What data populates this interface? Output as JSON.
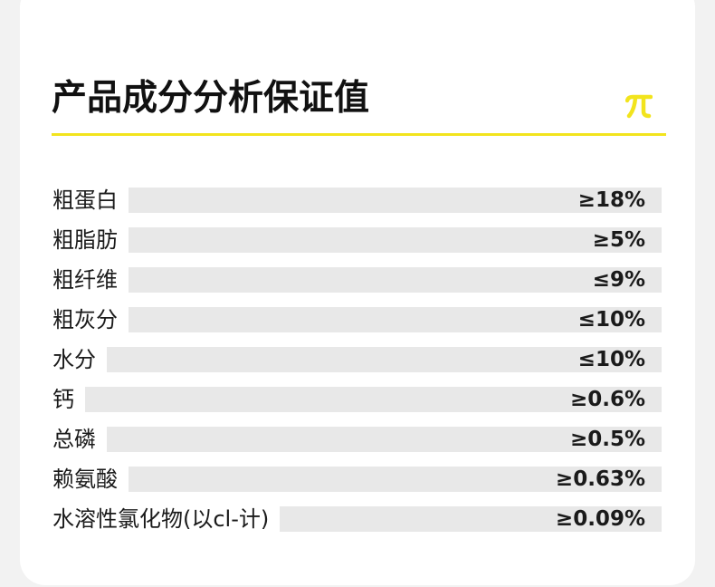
{
  "title": "产品成分分析保证值",
  "logo": {
    "icon": "pi-logo-icon",
    "color": "#f2e41d"
  },
  "divider_color": "#f2e41d",
  "rows": [
    {
      "label": "粗蛋白",
      "value": "≥18%"
    },
    {
      "label": "粗脂肪",
      "value": "≥5%"
    },
    {
      "label": "粗纤维",
      "value": "≤9%"
    },
    {
      "label": "粗灰分",
      "value": "≤10%"
    },
    {
      "label": "水分",
      "value": "≤10%"
    },
    {
      "label": "钙",
      "value": "≥0.6%"
    },
    {
      "label": "总磷",
      "value": "≥0.5%"
    },
    {
      "label": "赖氨酸",
      "value": "≥0.63%"
    },
    {
      "label": "水溶性氯化物(以cl-计)",
      "value": "≥0.09%"
    }
  ]
}
